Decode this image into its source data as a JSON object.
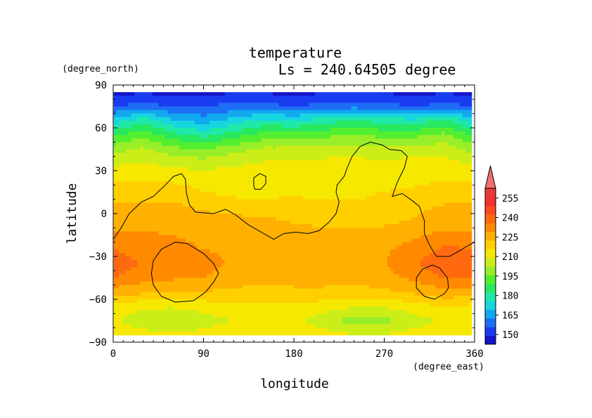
{
  "chart_data": {
    "type": "heatmap",
    "title": "temperature",
    "subtitle": "Ls = 240.64505 degree",
    "xlabel": "longitude",
    "ylabel": "latitude",
    "xunit": "(degree_east)",
    "yunit": "(degree_north)",
    "xlim": [
      0,
      360
    ],
    "ylim": [
      -90,
      90
    ],
    "data_lat_range": [
      -85,
      85
    ],
    "x_ticks": [
      "0",
      "90",
      "180",
      "270",
      "360"
    ],
    "y_ticks": [
      "90",
      "60",
      "30",
      "0",
      "−30",
      "−60",
      "−90"
    ],
    "x_tick_values": [
      0,
      90,
      180,
      270,
      360
    ],
    "y_tick_values": [
      90,
      60,
      30,
      0,
      -30,
      -60,
      -90
    ],
    "colorbar": {
      "levels": [
        150,
        165,
        180,
        195,
        210,
        225,
        240,
        255
      ],
      "labels": [
        "150",
        "165",
        "180",
        "195",
        "210",
        "225",
        "240",
        "255"
      ],
      "min": 142.5,
      "max": 262.5,
      "extend": "max",
      "colors": [
        "#1414c8",
        "#1a3cf0",
        "#1e6ef5",
        "#12a8f0",
        "#18d6e0",
        "#20e8a8",
        "#28e860",
        "#52ee30",
        "#98ee28",
        "#ccee18",
        "#f6e800",
        "#ffcf00",
        "#ffb000",
        "#ff8a00",
        "#ff6a10",
        "#ff4a20",
        "#f43030",
        "#e83a3a"
      ]
    },
    "field_lat": [
      85,
      75,
      65,
      55,
      45,
      35,
      25,
      15,
      5,
      -5,
      -15,
      -25,
      -35,
      -45,
      -55,
      -65,
      -75,
      -85
    ],
    "field_lon": [
      0,
      30,
      60,
      90,
      120,
      150,
      180,
      210,
      240,
      270,
      300,
      330,
      360
    ],
    "field": [
      [
        148,
        148,
        148,
        148,
        148,
        148,
        148,
        148,
        148,
        148,
        148,
        148,
        148
      ],
      [
        156,
        158,
        156,
        156,
        158,
        158,
        156,
        158,
        160,
        158,
        156,
        158,
        156
      ],
      [
        172,
        180,
        170,
        166,
        172,
        178,
        176,
        180,
        182,
        180,
        178,
        184,
        172
      ],
      [
        188,
        194,
        185,
        180,
        186,
        192,
        192,
        194,
        196,
        194,
        194,
        198,
        188
      ],
      [
        200,
        204,
        198,
        196,
        200,
        204,
        204,
        206,
        206,
        204,
        206,
        206,
        200
      ],
      [
        208,
        210,
        207,
        206,
        208,
        210,
        210,
        211,
        212,
        211,
        212,
        212,
        208
      ],
      [
        214,
        215,
        214,
        213,
        213,
        214,
        214,
        213,
        214,
        213,
        214,
        215,
        214
      ],
      [
        219,
        220,
        219,
        216,
        214,
        214,
        215,
        214,
        214,
        216,
        217,
        219,
        219
      ],
      [
        223,
        224,
        224,
        221,
        219,
        218,
        218,
        217,
        217,
        219,
        221,
        223,
        223
      ],
      [
        226,
        227,
        227,
        226,
        225,
        224,
        222,
        221,
        220,
        221,
        223,
        226,
        226
      ],
      [
        231,
        230,
        229,
        228,
        227,
        226,
        225,
        224,
        224,
        225,
        228,
        231,
        231
      ],
      [
        236,
        233,
        231,
        229,
        228,
        226,
        226,
        226,
        227,
        228,
        232,
        237,
        236
      ],
      [
        240,
        235,
        233,
        232,
        228,
        226,
        226,
        226,
        227,
        229,
        235,
        241,
        240
      ],
      [
        236,
        232,
        230,
        229,
        226,
        224,
        225,
        225,
        225,
        227,
        231,
        236,
        236
      ],
      [
        226,
        224,
        223,
        222,
        221,
        220,
        221,
        221,
        220,
        221,
        224,
        227,
        226
      ],
      [
        214,
        210,
        210,
        212,
        214,
        214,
        215,
        212,
        210,
        210,
        213,
        216,
        214
      ],
      [
        210,
        205,
        203,
        206,
        209,
        212,
        211,
        205,
        199,
        200,
        206,
        210,
        210
      ],
      [
        214,
        212,
        210,
        212,
        214,
        215,
        214,
        212,
        210,
        210,
        212,
        214,
        214
      ]
    ],
    "contours": [
      {
        "name": "northern-contour",
        "closed": false,
        "points": [
          [
            0,
            -18
          ],
          [
            8,
            -10
          ],
          [
            16,
            0
          ],
          [
            28,
            8
          ],
          [
            40,
            12
          ],
          [
            52,
            20
          ],
          [
            60,
            26
          ],
          [
            68,
            28
          ],
          [
            72,
            24
          ],
          [
            73,
            14
          ],
          [
            76,
            6
          ],
          [
            82,
            1
          ],
          [
            100,
            0
          ],
          [
            112,
            3
          ],
          [
            122,
            -1
          ],
          [
            135,
            -8
          ],
          [
            150,
            -14
          ],
          [
            160,
            -18
          ],
          [
            170,
            -14
          ],
          [
            182,
            -13
          ],
          [
            194,
            -14
          ],
          [
            205,
            -12
          ],
          [
            215,
            -6
          ],
          [
            222,
            0
          ],
          [
            225,
            8
          ],
          [
            222,
            15
          ],
          [
            223,
            20
          ],
          [
            230,
            26
          ],
          [
            233,
            32
          ],
          [
            238,
            40
          ],
          [
            246,
            47
          ],
          [
            256,
            50
          ],
          [
            268,
            48
          ],
          [
            275,
            45
          ],
          [
            287,
            44
          ],
          [
            293,
            40
          ],
          [
            290,
            32
          ],
          [
            283,
            22
          ],
          [
            280,
            16
          ],
          [
            278,
            12
          ],
          [
            288,
            14
          ],
          [
            298,
            9
          ],
          [
            305,
            5
          ],
          [
            310,
            -5
          ],
          [
            310,
            -14
          ],
          [
            315,
            -22
          ],
          [
            322,
            -30
          ],
          [
            335,
            -30
          ],
          [
            345,
            -26
          ],
          [
            352,
            -23
          ],
          [
            360,
            -20
          ]
        ]
      },
      {
        "name": "small-contour-north",
        "closed": true,
        "points": [
          [
            140,
            20
          ],
          [
            140,
            25
          ],
          [
            146,
            28
          ],
          [
            152,
            26
          ],
          [
            152,
            21
          ],
          [
            147,
            17
          ],
          [
            141,
            17
          ]
        ]
      },
      {
        "name": "western-crater-contour",
        "closed": true,
        "points": [
          [
            38,
            -42
          ],
          [
            40,
            -33
          ],
          [
            48,
            -25
          ],
          [
            62,
            -20
          ],
          [
            74,
            -21
          ],
          [
            90,
            -28
          ],
          [
            100,
            -35
          ],
          [
            105,
            -42
          ],
          [
            100,
            -48
          ],
          [
            92,
            -55
          ],
          [
            80,
            -61
          ],
          [
            62,
            -62
          ],
          [
            48,
            -58
          ],
          [
            40,
            -50
          ]
        ]
      },
      {
        "name": "eastern-crater-contour",
        "closed": true,
        "points": [
          [
            302,
            -52
          ],
          [
            302,
            -45
          ],
          [
            308,
            -39
          ],
          [
            318,
            -36
          ],
          [
            325,
            -38
          ],
          [
            333,
            -45
          ],
          [
            334,
            -52
          ],
          [
            330,
            -56
          ],
          [
            320,
            -60
          ],
          [
            310,
            -58
          ]
        ]
      }
    ]
  }
}
